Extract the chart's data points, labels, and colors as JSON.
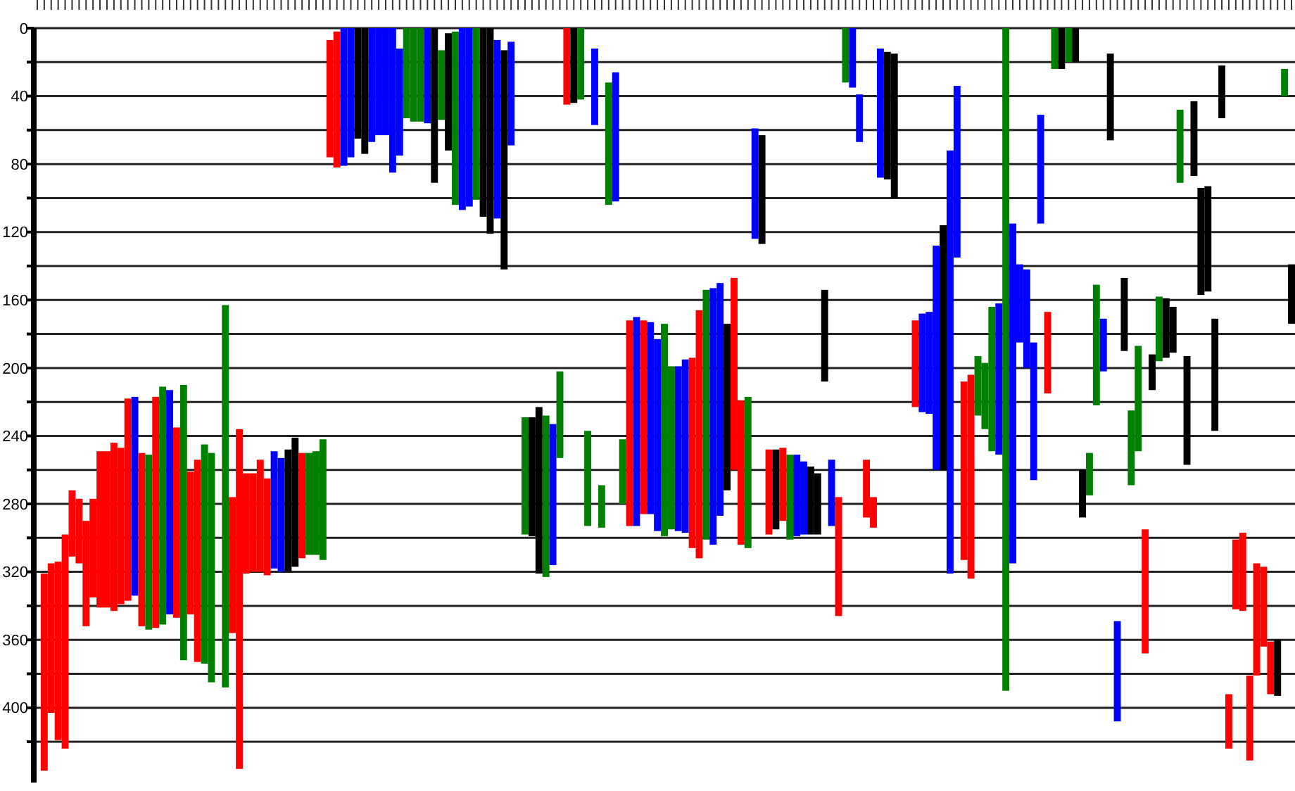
{
  "chart_data": {
    "type": "bar",
    "categories": [
      null,
      null,
      null,
      null,
      null,
      null,
      null,
      null,
      null,
      null,
      null,
      null,
      null,
      null,
      null,
      null,
      null,
      null,
      null,
      null,
      null,
      null,
      null,
      null,
      null,
      null,
      null,
      null,
      null,
      null,
      null,
      null,
      null,
      null,
      null,
      null,
      null,
      null,
      null,
      null,
      null,
      null,
      null,
      null,
      null,
      null,
      null,
      null,
      null,
      null,
      null,
      null,
      null,
      null,
      null,
      null,
      null,
      null,
      null,
      null,
      null,
      null,
      null,
      null,
      null,
      null,
      null,
      null,
      null,
      null,
      null,
      null,
      null,
      null,
      null,
      null,
      null,
      null,
      null,
      null,
      null,
      null,
      null,
      null,
      null,
      null,
      null,
      null,
      null,
      null,
      null,
      null,
      null,
      null,
      null,
      null,
      null,
      null,
      null,
      null,
      null,
      null,
      null,
      null,
      null,
      null,
      null,
      null,
      null,
      null,
      null,
      null,
      null,
      null,
      null,
      null,
      null,
      null,
      null,
      null,
      null,
      null,
      null,
      null,
      null,
      null,
      null,
      null,
      null,
      null,
      null,
      null,
      null,
      null,
      null,
      null,
      null,
      null,
      null,
      null,
      null,
      null,
      null,
      null,
      null,
      null,
      null,
      null,
      null,
      null,
      null,
      null,
      null,
      null,
      null,
      null,
      null,
      null,
      null,
      null,
      null,
      null,
      null,
      null,
      null,
      null,
      null,
      null,
      null,
      null,
      null,
      null,
      null,
      null,
      null,
      null,
      null,
      null,
      null,
      null,
      null
    ],
    "base": [
      null,
      321,
      315,
      314,
      298,
      272,
      277,
      290,
      277,
      249,
      249,
      244,
      247,
      218,
      217,
      250,
      251,
      217,
      211,
      213,
      235,
      210,
      261,
      254,
      245,
      250,
      null,
      163,
      276,
      236,
      262,
      262,
      254,
      265,
      249,
      253,
      248,
      241,
      250,
      250,
      249,
      242,
      7,
      2,
      0,
      0,
      0,
      0,
      0,
      0,
      0,
      0,
      12,
      0,
      0,
      0,
      0,
      0,
      13,
      3,
      2,
      0,
      0,
      0,
      0,
      0,
      7,
      13,
      8,
      null,
      229,
      229,
      223,
      228,
      233,
      202,
      0,
      0,
      0,
      237,
      12,
      269,
      32,
      26,
      242,
      172,
      170,
      172,
      173,
      183,
      174,
      199,
      199,
      195,
      194,
      166,
      154,
      153,
      150,
      174,
      147,
      219,
      217,
      59,
      63,
      248,
      248,
      247,
      251,
      251,
      255,
      258,
      262,
      154,
      254,
      276,
      0,
      0,
      39,
      254,
      276,
      12,
      14,
      15,
      null,
      null,
      172,
      168,
      167,
      128,
      116,
      72,
      34,
      208,
      204,
      193,
      197,
      164,
      162,
      0,
      115,
      139,
      142,
      185,
      51,
      167,
      0,
      0,
      0,
      0,
      260,
      250,
      151,
      171,
      15,
      349,
      147,
      225,
      187,
      295,
      192,
      158,
      159,
      164,
      48,
      193,
      43,
      94,
      93,
      171,
      22,
      392,
      301,
      297,
      381,
      315,
      317,
      361,
      360,
      24,
      139
    ],
    "values": [
      null,
      116,
      88,
      105,
      126,
      39,
      38,
      62,
      58,
      92,
      92,
      99,
      92,
      119,
      117,
      102,
      103,
      136,
      140,
      132,
      112,
      162,
      84,
      119,
      129,
      135,
      null,
      225,
      80,
      200,
      59,
      58,
      66,
      57,
      69,
      67,
      72,
      76,
      62,
      60,
      61,
      71,
      69,
      80,
      81,
      76,
      65,
      74,
      67,
      63,
      63,
      85,
      63,
      53,
      55,
      55,
      56,
      91,
      41,
      69,
      102,
      107,
      105,
      101,
      111,
      121,
      105,
      129,
      61,
      null,
      69,
      70,
      98,
      95,
      83,
      51,
      45,
      44,
      42,
      56,
      45,
      25,
      72,
      76,
      38,
      121,
      123,
      114,
      113,
      113,
      125,
      96,
      97,
      102,
      112,
      146,
      147,
      151,
      137,
      98,
      113,
      85,
      89,
      65,
      64,
      50,
      47,
      43,
      50,
      48,
      43,
      40,
      36,
      54,
      39,
      70,
      32,
      35,
      28,
      34,
      18,
      76,
      75,
      85,
      null,
      null,
      51,
      58,
      60,
      132,
      144,
      249,
      101,
      105,
      120,
      35,
      39,
      85,
      89,
      390,
      200,
      46,
      58,
      81,
      64,
      48,
      24,
      24,
      20,
      20,
      28,
      25,
      71,
      31,
      51,
      59,
      43,
      44,
      62,
      73,
      21,
      38,
      35,
      27,
      43,
      64,
      44,
      63,
      62,
      66,
      31,
      32,
      41,
      46,
      50,
      66,
      47,
      31,
      33,
      16,
      35
    ],
    "colors": [
      null,
      "#ff0000",
      "#ff0000",
      "#ff0000",
      "#ff0000",
      "#ff0000",
      "#ff0000",
      "#ff0000",
      "#ff0000",
      "#ff0000",
      "#ff0000",
      "#ff0000",
      "#ff0000",
      "#ff0000",
      "#0000ff",
      "#ff0000",
      "#008000",
      "#ff0000",
      "#008000",
      "#0000ff",
      "#ff0000",
      "#008000",
      "#ff0000",
      "#ff0000",
      "#008000",
      "#008000",
      null,
      "#008000",
      "#ff0000",
      "#ff0000",
      "#ff0000",
      "#ff0000",
      "#ff0000",
      "#ff0000",
      "#0000ff",
      "#0000ff",
      "#000000",
      "#000000",
      "#ff0000",
      "#008000",
      "#008000",
      "#008000",
      "#ff0000",
      "#ff0000",
      "#0000ff",
      "#0000ff",
      "#000000",
      "#000000",
      "#0000ff",
      "#0000ff",
      "#0000ff",
      "#0000ff",
      "#0000ff",
      "#008000",
      "#008000",
      "#008000",
      "#0000ff",
      "#000000",
      "#008000",
      "#000000",
      "#008000",
      "#0000ff",
      "#0000ff",
      "#008000",
      "#000000",
      "#000000",
      "#0000ff",
      "#000000",
      "#0000ff",
      null,
      "#008000",
      "#000000",
      "#000000",
      "#008000",
      "#0000ff",
      "#008000",
      "#ff0000",
      "#000000",
      "#008000",
      "#008000",
      "#0000ff",
      "#008000",
      "#008000",
      "#0000ff",
      "#008000",
      "#ff0000",
      "#0000ff",
      "#ff0000",
      "#0000ff",
      "#0000ff",
      "#008000",
      "#008000",
      "#0000ff",
      "#0000ff",
      "#ff0000",
      "#ff0000",
      "#008000",
      "#0000ff",
      "#0000ff",
      "#000000",
      "#ff0000",
      "#ff0000",
      "#008000",
      "#0000ff",
      "#000000",
      "#ff0000",
      "#000000",
      "#ff0000",
      "#008000",
      "#0000ff",
      "#0000ff",
      "#000000",
      "#000000",
      "#000000",
      "#0000ff",
      "#ff0000",
      "#008000",
      "#0000ff",
      "#0000ff",
      "#ff0000",
      "#ff0000",
      "#0000ff",
      "#000000",
      "#000000",
      null,
      null,
      "#ff0000",
      "#0000ff",
      "#0000ff",
      "#0000ff",
      "#000000",
      "#0000ff",
      "#0000ff",
      "#ff0000",
      "#ff0000",
      "#008000",
      "#008000",
      "#008000",
      "#0000ff",
      "#008000",
      "#0000ff",
      "#0000ff",
      "#0000ff",
      "#0000ff",
      "#0000ff",
      "#ff0000",
      "#008000",
      "#000000",
      "#008000",
      "#000000",
      "#000000",
      "#008000",
      "#008000",
      "#0000ff",
      "#000000",
      "#0000ff",
      "#000000",
      "#008000",
      "#008000",
      "#ff0000",
      "#000000",
      "#008000",
      "#000000",
      "#000000",
      "#008000",
      "#000000",
      "#000000",
      "#000000",
      "#000000",
      "#000000",
      "#000000",
      "#ff0000",
      "#ff0000",
      "#ff0000",
      "#ff0000",
      "#ff0000",
      "#ff0000",
      "#ff0000",
      "#000000",
      "#008000",
      "#000000"
    ],
    "ylim": [
      444,
      0
    ],
    "yticks": [
      0,
      {
        "value": 20,
        "label": null
      },
      40,
      {
        "value": 60,
        "label": null
      },
      80,
      {
        "value": 100,
        "label": null
      },
      120,
      {
        "value": 140,
        "label": null
      },
      160,
      {
        "value": 180,
        "label": null
      },
      200,
      {
        "value": 220,
        "label": null
      },
      240,
      {
        "value": 260,
        "label": null
      },
      280,
      {
        "value": 300,
        "label": null
      },
      320,
      {
        "value": 340,
        "label": null
      },
      360,
      {
        "value": 380,
        "label": null
      },
      400,
      {
        "value": 420,
        "label": null
      }
    ],
    "grid": "y",
    "tick_labels": "y"
  }
}
